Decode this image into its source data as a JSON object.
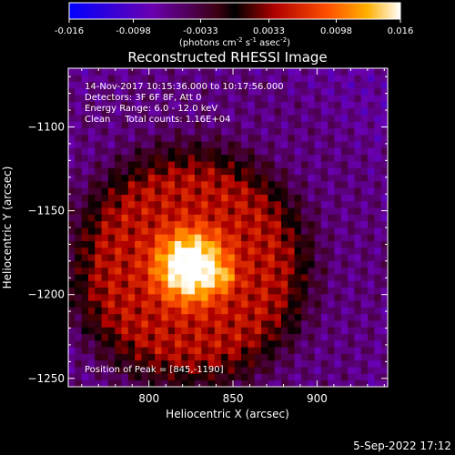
{
  "chart_data": {
    "type": "heatmap",
    "title": "Reconstructed RHESSI Image",
    "xlabel": "Heliocentric X (arcsec)",
    "ylabel": "Heliocentric Y (arcsec)",
    "xlim": [
      752,
      942
    ],
    "ylim": [
      -1255,
      -1065
    ],
    "xticks": [
      800,
      850,
      900
    ],
    "yticks": [
      -1100,
      -1150,
      -1200,
      -1250
    ],
    "colorbar": {
      "min": -0.016,
      "max": 0.016,
      "ticks": [
        "-0.016",
        "-0.0098",
        "-0.0033",
        "0.0033",
        "0.0098",
        "0.016"
      ],
      "unit_prefix": "(photons cm",
      "unit_exp1": "-2",
      "unit_mid1": " s",
      "unit_exp2": "-1",
      "unit_mid2": " asec",
      "unit_exp3": "-2",
      "unit_suffix": ")"
    },
    "info": [
      "14-Nov-2017 10:15:36.000 to 10:17:56.000",
      "Detectors: 3F 6F 8F, Att 0",
      "Energy Range: 6.0 - 12.0 keV",
      "Clean     Total counts: 1.16E+04"
    ],
    "peak_label": "Position of Peak = [845,-1190]",
    "peak": [
      845,
      -1190
    ],
    "grid": {
      "nx": 48,
      "ny": 48,
      "center": [
        825,
        -1183
      ],
      "sigma": 34,
      "peak_value": 0.016
    }
  },
  "footer": {
    "date": "5-Sep-2022 17:12"
  }
}
